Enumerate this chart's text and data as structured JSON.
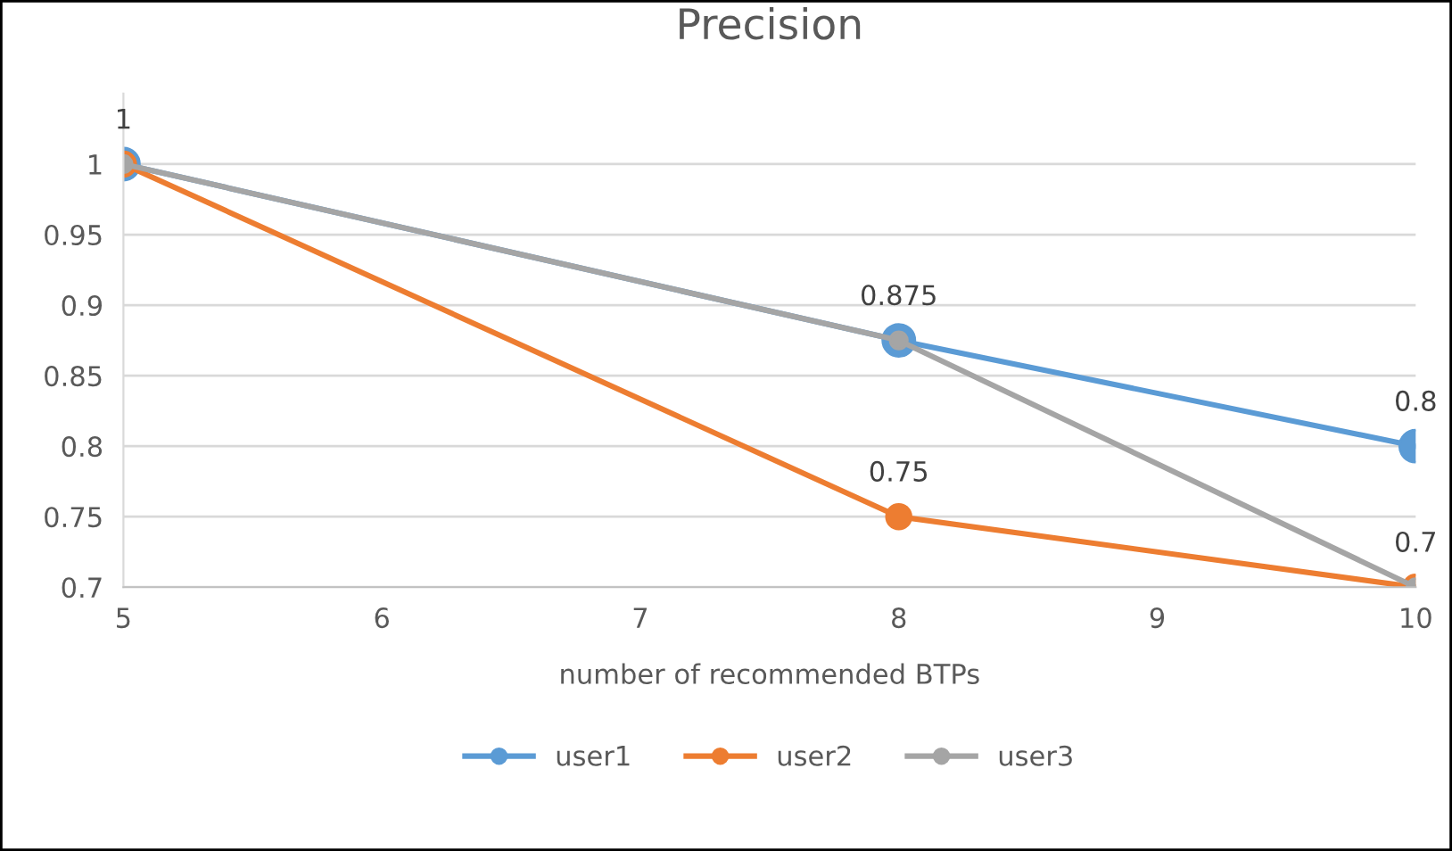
{
  "chart_data": {
    "type": "line",
    "title": "Precision",
    "xlabel": "number of recommended BTPs",
    "x": [
      5,
      8,
      10
    ],
    "series": [
      {
        "name": "user1",
        "color": "#5b9bd5",
        "values": [
          1,
          0.875,
          0.8
        ],
        "value_labels": [
          "1",
          "0.875",
          "0.8"
        ]
      },
      {
        "name": "user2",
        "color": "#ed7d31",
        "values": [
          1,
          0.75,
          0.7
        ],
        "value_labels": [
          null,
          "0.75",
          "0.7"
        ]
      },
      {
        "name": "user3",
        "color": "#a5a5a5",
        "values": [
          1,
          0.875,
          0.7
        ],
        "value_labels": [
          null,
          null,
          null
        ]
      }
    ],
    "xlim": [
      5,
      10
    ],
    "xticks": [
      5,
      6,
      7,
      8,
      9,
      10
    ],
    "ylim": [
      0.7,
      1.05
    ],
    "yticks": [
      {
        "value": 0.7,
        "label": "0.7"
      },
      {
        "value": 0.75,
        "label": "0.75"
      },
      {
        "value": 0.8,
        "label": "0.8"
      },
      {
        "value": 0.85,
        "label": "0.85"
      },
      {
        "value": 0.9,
        "label": "0.9"
      },
      {
        "value": 0.95,
        "label": "0.95"
      },
      {
        "value": 1,
        "label": "1"
      }
    ],
    "grid": "y",
    "legend": "bottom",
    "marker": "circle",
    "line_style": "solid"
  }
}
